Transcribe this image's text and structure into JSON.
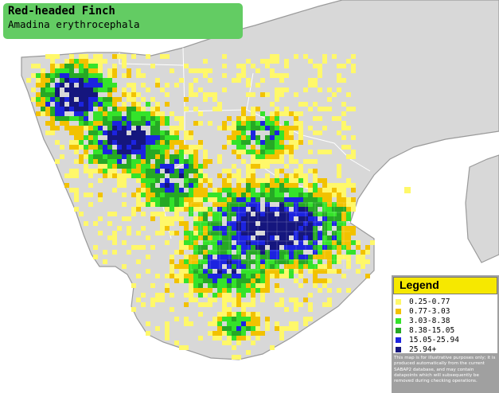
{
  "title": {
    "common_name": "Red-headed Finch",
    "scientific_name": "Amadina erythrocephala"
  },
  "legend": {
    "heading": "Legend",
    "items": [
      {
        "label": "0.25-0.77",
        "color": "#fff86a"
      },
      {
        "label": "0.77-3.03",
        "color": "#f2c200"
      },
      {
        "label": "3.03-8.38",
        "color": "#34e32a"
      },
      {
        "label": "8.38-15.05",
        "color": "#26a825"
      },
      {
        "label": "15.05-25.94",
        "color": "#1c23e0"
      },
      {
        "label": "25.94+",
        "color": "#15167e"
      }
    ],
    "note": "This map is for illustrative purposes only; it is produced automatically from the current SABAP2 database, and may contain datapoints which will subsequently be removed during checking operations."
  },
  "colors": {
    "land": "#d8d8d8",
    "coast": "#9a9a9a",
    "border": "#ffffff",
    "title_bg": "#63cc63",
    "legend_header": "#f6e800",
    "legend_bg": "#a0a0a0"
  }
}
